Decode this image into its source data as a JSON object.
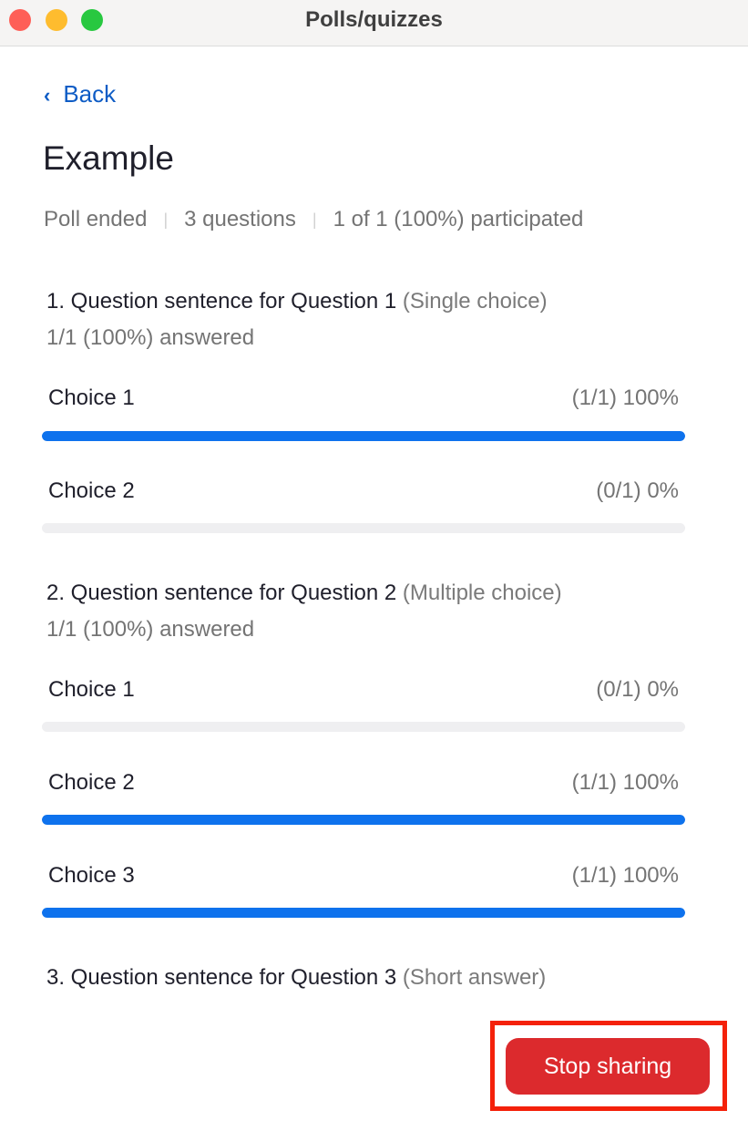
{
  "window": {
    "title": "Polls/quizzes",
    "traffic_lights": {
      "close": "#fe5f57",
      "minimize": "#febc2e",
      "zoom": "#28c840"
    }
  },
  "nav": {
    "back_label": "Back",
    "back_icon": "chevron-left-icon"
  },
  "poll": {
    "title": "Example",
    "meta": [
      "Poll ended",
      "3 questions",
      "1 of 1 (100%) participated"
    ],
    "questions": [
      {
        "text": "1. Question sentence for Question 1",
        "type": "(Single choice)",
        "answered": "1/1 (100%) answered",
        "choices": [
          {
            "label": "Choice 1",
            "result": "(1/1) 100%",
            "percent": 100
          },
          {
            "label": "Choice 2",
            "result": "(0/1) 0%",
            "percent": 0
          }
        ]
      },
      {
        "text": "2.  Question sentence for Question 2",
        "type": "(Multiple choice)",
        "answered": "1/1 (100%) answered",
        "choices": [
          {
            "label": "Choice 1",
            "result": "(0/1) 0%",
            "percent": 0
          },
          {
            "label": "Choice 2",
            "result": "(1/1) 100%",
            "percent": 100
          },
          {
            "label": "Choice 3",
            "result": "(1/1) 100%",
            "percent": 100
          }
        ]
      },
      {
        "text": "3.  Question sentence for Question 3",
        "type": "(Short answer)"
      }
    ]
  },
  "actions": {
    "stop_sharing_label": "Stop sharing"
  },
  "colors": {
    "accent": "#0e72ed",
    "link": "#0e5cc5",
    "danger": "#dc2a2d",
    "highlight": "#f4210a"
  }
}
